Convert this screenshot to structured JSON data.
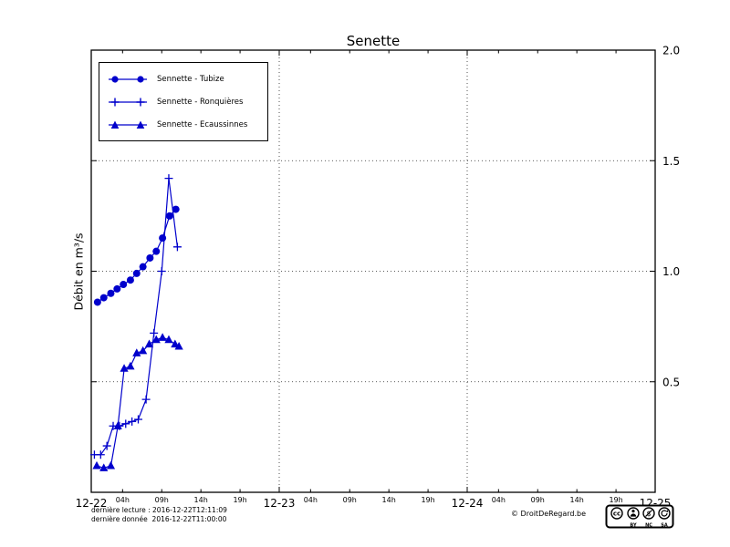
{
  "title": "Senette",
  "ylabel": "Débit en m³/s",
  "colors": {
    "line": "#0000cc",
    "grid": "#000000",
    "text": "#000000"
  },
  "legend": [
    {
      "label": "Sennette - Tubize",
      "marker": "circle"
    },
    {
      "label": "Sennette - Ronquières",
      "marker": "plus"
    },
    {
      "label": "Sennette - Ecaussinnes",
      "marker": "triangle"
    }
  ],
  "footer": {
    "last_reading": "dernière lecture : 2016-12-22T12:11:09",
    "last_data": "dernière donnée  2016-12-22T11:00:00",
    "copyright": "© DroitDeRegard.be",
    "license_labels": [
      "BY",
      "NC",
      "SA"
    ]
  },
  "chart_data": {
    "type": "line",
    "title": "Senette",
    "ylabel": "Débit en m³/s",
    "x_unit": "hours since 2016-12-22 00:00",
    "xlim": [
      0,
      72
    ],
    "ylim": [
      0,
      2.0
    ],
    "grid": {
      "vertical_at": [
        24,
        48
      ],
      "horizontal_at": [
        0.5,
        1.0,
        1.5
      ]
    },
    "x_major_ticks": [
      {
        "pos": 0,
        "label": "12-22"
      },
      {
        "pos": 24,
        "label": "12-23"
      },
      {
        "pos": 48,
        "label": "12-24"
      },
      {
        "pos": 72,
        "label": "12-25"
      }
    ],
    "x_minor_ticks": [
      {
        "pos": 4,
        "label": "04h"
      },
      {
        "pos": 9,
        "label": "09h"
      },
      {
        "pos": 14,
        "label": "14h"
      },
      {
        "pos": 19,
        "label": "19h"
      },
      {
        "pos": 28,
        "label": "04h"
      },
      {
        "pos": 33,
        "label": "09h"
      },
      {
        "pos": 38,
        "label": "14h"
      },
      {
        "pos": 43,
        "label": "19h"
      },
      {
        "pos": 52,
        "label": "04h"
      },
      {
        "pos": 57,
        "label": "09h"
      },
      {
        "pos": 62,
        "label": "14h"
      },
      {
        "pos": 67,
        "label": "19h"
      }
    ],
    "y_ticks": [
      {
        "pos": 0.5,
        "label": "0.5"
      },
      {
        "pos": 1.0,
        "label": "1.0"
      },
      {
        "pos": 1.5,
        "label": "1.5"
      },
      {
        "pos": 2.0,
        "label": "2.0"
      }
    ],
    "series": [
      {
        "id": "tubize",
        "name": "Sennette - Tubize",
        "marker": "circle",
        "color": "#0000cc",
        "x": [
          0.8,
          1.6,
          2.5,
          3.3,
          4.1,
          5.0,
          5.8,
          6.6,
          7.5,
          8.3,
          9.1,
          10.0,
          10.8
        ],
        "y": [
          0.86,
          0.88,
          0.9,
          0.92,
          0.94,
          0.96,
          0.99,
          1.02,
          1.06,
          1.09,
          1.15,
          1.25,
          1.28
        ]
      },
      {
        "id": "ronquieres",
        "name": "Sennette - Ronquières",
        "marker": "plus",
        "color": "#0000cc",
        "x": [
          0.4,
          1.2,
          2.0,
          2.8,
          3.6,
          4.4,
          5.2,
          6.0,
          7.0,
          8.0,
          9.0,
          9.9,
          11.0
        ],
        "y": [
          0.17,
          0.17,
          0.21,
          0.3,
          0.3,
          0.31,
          0.32,
          0.33,
          0.42,
          0.72,
          1.0,
          1.42,
          1.11
        ]
      },
      {
        "id": "ecaussinnes",
        "name": "Sennette - Ecaussinnes",
        "marker": "triangle",
        "color": "#0000cc",
        "x": [
          0.7,
          1.6,
          2.5,
          3.4,
          4.2,
          5.0,
          5.8,
          6.6,
          7.4,
          8.3,
          9.1,
          9.9,
          10.7,
          11.2
        ],
        "y": [
          0.12,
          0.11,
          0.12,
          0.3,
          0.56,
          0.57,
          0.63,
          0.64,
          0.67,
          0.69,
          0.7,
          0.69,
          0.67,
          0.66
        ]
      }
    ]
  }
}
